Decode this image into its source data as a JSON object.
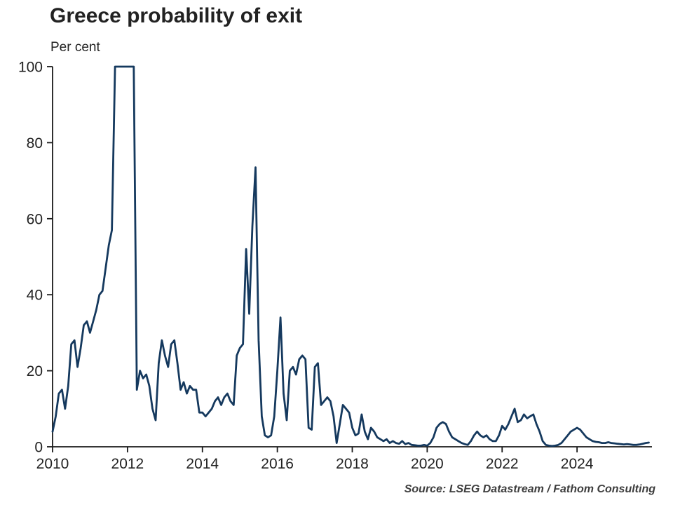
{
  "page": {
    "title": "Greece probability of exit",
    "subtitle": "Per cent",
    "source": "Source: LSEG Datastream / Fathom Consulting"
  },
  "chart_data": {
    "type": "line",
    "title": "Greece probability of exit",
    "subtitle": "Per cent",
    "xlabel": "",
    "ylabel": "Per cent",
    "ylim": [
      0,
      100
    ],
    "yticks": [
      0,
      20,
      40,
      60,
      80,
      100
    ],
    "xticks": [
      2010,
      2012,
      2014,
      2016,
      2018,
      2020,
      2022,
      2024
    ],
    "x_range": [
      2010,
      2026
    ],
    "grid": false,
    "legend_position": "none",
    "colors": {
      "line": "#15395e",
      "axis": "#1a1a1a",
      "tick_text": "#222222",
      "background": "#ffffff",
      "source_text": "#3d3d3d"
    },
    "series": [
      {
        "name": "Greece probability of exit (per cent)",
        "x_start_year": 2010,
        "frequency": "monthly",
        "values": [
          4,
          8,
          14,
          15,
          10,
          16,
          27,
          28,
          21,
          26,
          32,
          33,
          30,
          33,
          36,
          40,
          41,
          47,
          53,
          57,
          100,
          100,
          100,
          100,
          100,
          100,
          100,
          15,
          20,
          18,
          19,
          16,
          10,
          7,
          22,
          28,
          24,
          21,
          27,
          28,
          22,
          15,
          17,
          14,
          16,
          15,
          15,
          9,
          9,
          8,
          9,
          10,
          12,
          13,
          11,
          13,
          14,
          12,
          11,
          24,
          26,
          27,
          52,
          35,
          58,
          73.5,
          28,
          8,
          3,
          2.5,
          3,
          8,
          20,
          34,
          14,
          7,
          20,
          21,
          19,
          23,
          24,
          23,
          5,
          4.5,
          21,
          22,
          11,
          12,
          13,
          12,
          8,
          1,
          6,
          11,
          10,
          9,
          5,
          3,
          3.5,
          8.5,
          4,
          2,
          5,
          4,
          2.5,
          2,
          1.5,
          2,
          1,
          1.5,
          1,
          0.8,
          1.5,
          0.7,
          1,
          0.5,
          0.4,
          0.3,
          0.3,
          0.5,
          0.3,
          1,
          2.5,
          5,
          6,
          6.5,
          6,
          4,
          2.5,
          2,
          1.5,
          1,
          0.7,
          0.5,
          1.5,
          3,
          4,
          3,
          2.5,
          3,
          2,
          1.5,
          1.5,
          3,
          5.5,
          4.5,
          6,
          8,
          10,
          6.5,
          7,
          8.5,
          7.5,
          8,
          8.5,
          6,
          4,
          1.5,
          0.5,
          0.3,
          0.2,
          0.3,
          0.5,
          1,
          2,
          3,
          4,
          4.5,
          5,
          4.5,
          3.5,
          2.5,
          2,
          1.5,
          1.3,
          1.2,
          1,
          1,
          1.2,
          1,
          0.9,
          0.8,
          0.7,
          0.6,
          0.7,
          0.6,
          0.5,
          0.5,
          0.6,
          0.8,
          1,
          1.1
        ]
      }
    ]
  }
}
